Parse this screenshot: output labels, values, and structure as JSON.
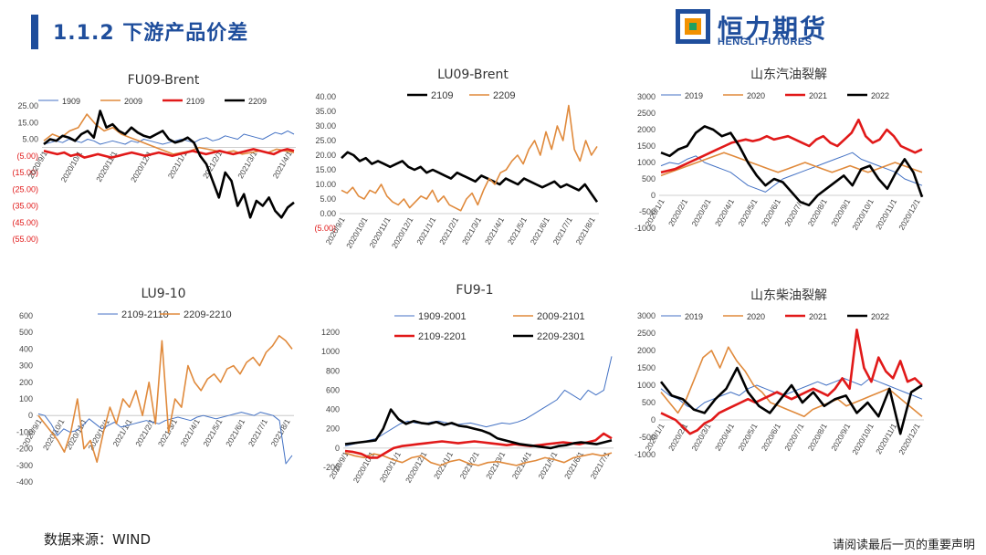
{
  "header": {
    "section_title": "1.1.2 下游产品价差",
    "logo_cn": "恒力期货",
    "logo_en": "HENGLI FUTURES"
  },
  "footer": {
    "source": "数据来源：WIND",
    "disclaimer": "请阅读最后一页的重要声明"
  },
  "colors": {
    "title_blue": "#1f4e9c",
    "series_blue": "#4472c4",
    "series_orange": "#e08a3c",
    "series_red": "#e11919",
    "series_black": "#000000",
    "negative_tick": "#e11919"
  },
  "chart_data": [
    {
      "id": "fu09-brent",
      "type": "line",
      "title": "FU09-Brent",
      "ylim": [
        -55,
        25
      ],
      "yticks": [
        "25.00",
        "15.00",
        "5.00",
        "(5.00)",
        "(15.00)",
        "(25.00)",
        "(35.00)",
        "(45.00)",
        "(55.00)"
      ],
      "xticks": [
        "2020/9/1",
        "2020/10/1",
        "2020/11/1",
        "2020/12/1",
        "2021/1/1",
        "2021/2/1",
        "2021/3/1",
        "2021/4/1"
      ],
      "series": [
        {
          "name": "1909",
          "color": "blue",
          "values": [
            2,
            3,
            4,
            3,
            5,
            4,
            3,
            5,
            4,
            2,
            3,
            4,
            3,
            2,
            4,
            3,
            5,
            4,
            3,
            2,
            3,
            4,
            5,
            4,
            3,
            5,
            6,
            4,
            5,
            7,
            6,
            5,
            8,
            7,
            6,
            5,
            7,
            9,
            8,
            10,
            8
          ]
        },
        {
          "name": "2009",
          "color": "orange",
          "values": [
            4,
            8,
            6,
            10,
            12,
            20,
            14,
            10,
            12,
            8,
            6,
            4,
            2,
            0,
            -2,
            -4,
            -3,
            -2,
            0,
            -1,
            -2,
            -3,
            -2,
            -4,
            -3,
            -2,
            -3,
            -1,
            -2,
            -3
          ]
        },
        {
          "name": "2109",
          "color": "red",
          "values": [
            -2,
            -3,
            -4,
            -3,
            -5,
            -4,
            -6,
            -5,
            -4,
            -5,
            -6,
            -5,
            -4,
            -3,
            -4,
            -5,
            -4,
            -3,
            -4,
            -5,
            -4,
            -3,
            -2,
            -3,
            -4,
            -3,
            -2,
            -3,
            -4,
            -3,
            -2,
            -1,
            -2,
            -3,
            -4,
            -2,
            -1,
            -2
          ]
        },
        {
          "name": "2209",
          "color": "black",
          "values": [
            2,
            5,
            4,
            7,
            6,
            4,
            8,
            10,
            6,
            22,
            12,
            14,
            10,
            8,
            12,
            9,
            7,
            6,
            8,
            10,
            5,
            3,
            4,
            6,
            3,
            -5,
            -10,
            -20,
            -30,
            -15,
            -20,
            -35,
            -28,
            -42,
            -32,
            -35,
            -30,
            -38,
            -42,
            -36,
            -33
          ]
        }
      ]
    },
    {
      "id": "lu09-brent",
      "type": "line",
      "title": "LU09-Brent",
      "ylim": [
        -5,
        40
      ],
      "yticks": [
        "40.00",
        "35.00",
        "30.00",
        "25.00",
        "20.00",
        "15.00",
        "10.00",
        "5.00",
        "0.00",
        "(5.00)"
      ],
      "xticks": [
        "2020/9/1",
        "2020/10/1",
        "2020/11/1",
        "2020/12/1",
        "2021/1/1",
        "2021/2/1",
        "2021/3/1",
        "2021/4/1",
        "2021/5/1",
        "2021/6/1",
        "2021/7/1",
        "2021/8/1"
      ],
      "series": [
        {
          "name": "2109",
          "color": "black",
          "values": [
            19,
            21,
            20,
            18,
            19,
            17,
            18,
            17,
            16,
            17,
            18,
            16,
            15,
            16,
            14,
            15,
            14,
            13,
            12,
            14,
            13,
            12,
            11,
            13,
            12,
            11,
            10,
            12,
            11,
            10,
            12,
            11,
            10,
            9,
            10,
            11,
            9,
            10,
            9,
            8,
            10,
            7,
            4
          ]
        },
        {
          "name": "2209",
          "color": "orange",
          "values": [
            8,
            7,
            9,
            6,
            5,
            8,
            7,
            10,
            6,
            4,
            3,
            5,
            2,
            4,
            6,
            5,
            8,
            4,
            6,
            3,
            2,
            1,
            5,
            7,
            3,
            8,
            12,
            10,
            14,
            15,
            18,
            20,
            17,
            22,
            25,
            20,
            28,
            22,
            30,
            25,
            37,
            22,
            18,
            25,
            20,
            23
          ]
        }
      ]
    },
    {
      "id": "shandong-gasoline-crack",
      "type": "line",
      "title": "山东汽油裂解",
      "ylim": [
        -1000,
        3000
      ],
      "yticks": [
        "3000",
        "2500",
        "2000",
        "1500",
        "1000",
        "500",
        "0",
        "-500",
        "-1000"
      ],
      "xticks": [
        "2020/1/1",
        "2020/2/1",
        "2020/3/1",
        "2020/4/1",
        "2020/5/1",
        "2020/6/1",
        "2020/7/1",
        "2020/8/1",
        "2020/9/1",
        "2020/10/1",
        "2020/11/1",
        "2020/12/1"
      ],
      "series": [
        {
          "name": "2019",
          "color": "blue",
          "values": [
            900,
            1000,
            950,
            1100,
            1200,
            1000,
            900,
            800,
            700,
            500,
            300,
            200,
            100,
            300,
            500,
            600,
            700,
            800,
            900,
            1000,
            1100,
            1200,
            1300,
            1100,
            1000,
            900,
            800,
            700,
            500,
            400,
            300
          ]
        },
        {
          "name": "2020",
          "color": "orange",
          "values": [
            600,
            700,
            800,
            900,
            1000,
            1100,
            1200,
            1300,
            1200,
            1100,
            1000,
            900,
            800,
            700,
            800,
            900,
            1000,
            900,
            800,
            700,
            800,
            900,
            800,
            700,
            800,
            900,
            1000,
            900,
            800,
            700
          ]
        },
        {
          "name": "2021",
          "color": "red",
          "values": [
            700,
            750,
            800,
            900,
            1000,
            1100,
            1200,
            1300,
            1400,
            1500,
            1600,
            1650,
            1700,
            1650,
            1700,
            1800,
            1700,
            1750,
            1800,
            1700,
            1600,
            1500,
            1700,
            1800,
            1600,
            1500,
            1700,
            1900,
            2300,
            1800,
            1600,
            1700,
            2000,
            1800,
            1500,
            1400,
            1300,
            1400
          ]
        },
        {
          "name": "2022",
          "color": "black",
          "values": [
            1300,
            1200,
            1400,
            1500,
            1900,
            2100,
            2000,
            1800,
            1900,
            1500,
            1000,
            600,
            300,
            500,
            400,
            100,
            -200,
            -300,
            0,
            200,
            400,
            600,
            300,
            800,
            900,
            500,
            200,
            700,
            1100,
            700,
            -50
          ]
        }
      ]
    },
    {
      "id": "lu9-10",
      "type": "line",
      "title": "LU9-10",
      "ylim": [
        -400,
        600
      ],
      "yticks": [
        "600",
        "500",
        "400",
        "300",
        "200",
        "100",
        "0",
        "-100",
        "-200",
        "-300",
        "-400"
      ],
      "xticks": [
        "2020/9/1",
        "2020/10/1",
        "2020/11/1",
        "2020/12/1",
        "2021/1/1",
        "2021/2/1",
        "2021/3/1",
        "2021/4/1",
        "2021/5/1",
        "2021/6/1",
        "2021/7/1",
        "2021/8/1"
      ],
      "series": [
        {
          "name": "2109-2110",
          "color": "blue",
          "values": [
            10,
            0,
            -50,
            -120,
            -80,
            -100,
            -90,
            -60,
            -20,
            -50,
            -80,
            -60,
            -40,
            -70,
            -60,
            -50,
            -40,
            -30,
            -40,
            -50,
            -30,
            -20,
            -10,
            -20,
            -30,
            -10,
            0,
            -10,
            -20,
            -10,
            0,
            10,
            20,
            10,
            0,
            20,
            10,
            0,
            -30,
            -290,
            -240
          ]
        },
        {
          "name": "2209-2210",
          "color": "orange",
          "values": [
            0,
            -50,
            -100,
            -150,
            -220,
            -100,
            100,
            -200,
            -150,
            -280,
            -100,
            50,
            -50,
            100,
            50,
            150,
            0,
            200,
            -50,
            450,
            -100,
            100,
            50,
            300,
            200,
            150,
            220,
            250,
            200,
            280,
            300,
            250,
            320,
            350,
            300,
            380,
            420,
            480,
            450,
            400
          ]
        }
      ]
    },
    {
      "id": "fu9-1",
      "type": "line",
      "title": "FU9-1",
      "ylim": [
        -200,
        1200
      ],
      "yticks": [
        "1200",
        "1000",
        "800",
        "600",
        "400",
        "200",
        "0",
        "-200"
      ],
      "xticks": [
        "2020/9/1",
        "2020/10/1",
        "2020/11/1",
        "2020/12/1",
        "2021/1/1",
        "2021/2/1",
        "2021/3/1",
        "2021/4/1",
        "2021/5/1",
        "2021/6/1",
        "2021/7/1"
      ],
      "series": [
        {
          "name": "1909-2001",
          "color": "blue",
          "values": [
            20,
            40,
            60,
            80,
            100,
            150,
            200,
            250,
            280,
            260,
            250,
            270,
            280,
            260,
            240,
            250,
            260,
            240,
            220,
            240,
            260,
            250,
            270,
            300,
            350,
            400,
            450,
            500,
            600,
            550,
            500,
            600,
            550,
            600,
            950
          ]
        },
        {
          "name": "2009-2101",
          "color": "orange",
          "values": [
            -50,
            -80,
            -100,
            -60,
            -80,
            -120,
            -150,
            -100,
            -80,
            -150,
            -180,
            -140,
            -120,
            -160,
            -180,
            -150,
            -140,
            -160,
            -180,
            -150,
            -130,
            -100,
            -120,
            -150,
            -100,
            -80,
            -60,
            -80,
            -50
          ]
        },
        {
          "name": "2109-2201",
          "color": "red",
          "values": [
            -30,
            -40,
            -60,
            -100,
            -100,
            -50,
            0,
            20,
            30,
            40,
            50,
            60,
            70,
            60,
            50,
            60,
            70,
            60,
            50,
            40,
            30,
            40,
            30,
            20,
            30,
            40,
            50,
            60,
            50,
            40,
            60,
            80,
            150,
            100
          ]
        },
        {
          "name": "2209-2301",
          "color": "black",
          "values": [
            40,
            50,
            60,
            70,
            80,
            200,
            400,
            300,
            250,
            280,
            260,
            250,
            270,
            240,
            260,
            230,
            220,
            200,
            180,
            150,
            100,
            80,
            60,
            40,
            30,
            20,
            10,
            0,
            20,
            30,
            50,
            60,
            50,
            40,
            60,
            80
          ]
        }
      ]
    },
    {
      "id": "shandong-diesel-crack",
      "type": "line",
      "title": "山东柴油裂解",
      "ylim": [
        -1000,
        3000
      ],
      "yticks": [
        "3000",
        "2500",
        "2000",
        "1500",
        "1000",
        "500",
        "0",
        "-500",
        "-1000"
      ],
      "xticks": [
        "2020/1/1",
        "2020/2/1",
        "2020/3/1",
        "2020/4/1",
        "2020/5/1",
        "2020/6/1",
        "2020/7/1",
        "2020/8/1",
        "2020/9/1",
        "2020/10/1",
        "2020/11/1",
        "2020/12/1"
      ],
      "series": [
        {
          "name": "2019",
          "color": "blue",
          "values": [
            900,
            700,
            600,
            400,
            300,
            500,
            600,
            700,
            800,
            700,
            900,
            1000,
            900,
            800,
            700,
            800,
            900,
            1000,
            1100,
            1000,
            1100,
            1200,
            1100,
            1000,
            1200,
            1100,
            1000,
            900,
            800,
            700,
            600
          ]
        },
        {
          "name": "2020",
          "color": "orange",
          "values": [
            800,
            500,
            200,
            600,
            1200,
            1800,
            2000,
            1500,
            2100,
            1700,
            1400,
            1000,
            800,
            500,
            400,
            300,
            200,
            100,
            300,
            400,
            500,
            600,
            400,
            500,
            600,
            700,
            800,
            900,
            700,
            500,
            300,
            100
          ]
        },
        {
          "name": "2021",
          "color": "red",
          "values": [
            200,
            100,
            0,
            -200,
            -400,
            -300,
            -100,
            0,
            200,
            300,
            400,
            500,
            600,
            500,
            600,
            700,
            800,
            700,
            600,
            700,
            800,
            900,
            800,
            700,
            900,
            1200,
            900,
            2600,
            1500,
            1100,
            1800,
            1400,
            1200,
            1700,
            1100,
            1200,
            1000
          ]
        },
        {
          "name": "2022",
          "color": "black",
          "values": [
            1100,
            700,
            600,
            300,
            200,
            600,
            900,
            1500,
            800,
            400,
            200,
            600,
            1000,
            500,
            800,
            400,
            600,
            700,
            200,
            500,
            100,
            900,
            -400,
            800,
            1000
          ]
        }
      ]
    }
  ]
}
